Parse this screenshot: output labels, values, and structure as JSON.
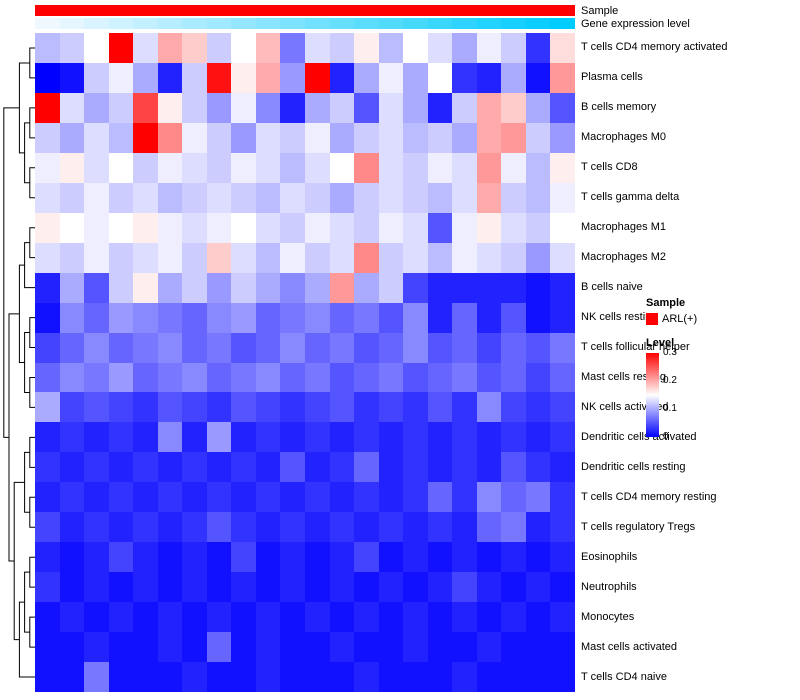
{
  "annotations": {
    "sample_label": "Sample",
    "expression_label": "Gene expression level",
    "sample_color": "#ff0000",
    "expression_gradient": [
      "#f0f8ff",
      "#00ccff"
    ]
  },
  "legend": {
    "sample_title": "Sample",
    "sample_items": [
      {
        "label": "ARL(+)",
        "color": "#ff0000"
      }
    ],
    "level_title": "Level",
    "level_ticks": [
      "0.3",
      "0.2",
      "0.1",
      "0"
    ]
  },
  "chart_data": {
    "type": "heatmap",
    "title": "",
    "n_cols": 22,
    "row_labels": [
      "T cells CD4 memory activated",
      "Plasma cells",
      "B cells memory",
      "Macrophages M0",
      "T cells CD8",
      "T cells gamma delta",
      "Macrophages M1",
      "Macrophages M2",
      "B cells naive",
      "NK cells resting",
      "T cells follicular helper",
      "Mast cells resting",
      "NK cells activated",
      "Dendritic cells activated",
      "Dendritic cells resting",
      "T cells CD4 memory resting",
      "T cells regulatory  Tregs",
      "Eosinophils",
      "Neutrophils",
      "Monocytes",
      "Mast cells activated",
      "T cells CD4 naive"
    ],
    "color_scale": {
      "min": 0,
      "mid": 0.15,
      "max": 0.3,
      "min_color": "#0000ff",
      "mid_color": "#ffffff",
      "max_color": "#ff0000"
    },
    "values": [
      [
        0.11,
        0.12,
        0.15,
        0.3,
        0.13,
        0.2,
        0.18,
        0.12,
        0.15,
        0.19,
        0.07,
        0.13,
        0.12,
        0.16,
        0.11,
        0.15,
        0.13,
        0.1,
        0.14,
        0.12,
        0.03,
        0.17
      ],
      [
        0.0,
        0.01,
        0.12,
        0.14,
        0.1,
        0.02,
        0.12,
        0.29,
        0.16,
        0.2,
        0.09,
        0.3,
        0.02,
        0.1,
        0.14,
        0.1,
        0.15,
        0.03,
        0.02,
        0.1,
        0.01,
        0.21
      ],
      [
        0.3,
        0.13,
        0.1,
        0.12,
        0.26,
        0.16,
        0.12,
        0.09,
        0.14,
        0.08,
        0.02,
        0.1,
        0.12,
        0.05,
        0.13,
        0.1,
        0.02,
        0.12,
        0.2,
        0.18,
        0.1,
        0.05
      ],
      [
        0.12,
        0.1,
        0.13,
        0.11,
        0.3,
        0.22,
        0.14,
        0.12,
        0.09,
        0.13,
        0.12,
        0.14,
        0.1,
        0.12,
        0.13,
        0.11,
        0.12,
        0.1,
        0.2,
        0.21,
        0.12,
        0.09
      ],
      [
        0.14,
        0.16,
        0.13,
        0.15,
        0.12,
        0.14,
        0.13,
        0.12,
        0.14,
        0.13,
        0.11,
        0.13,
        0.15,
        0.22,
        0.13,
        0.12,
        0.14,
        0.13,
        0.21,
        0.14,
        0.11,
        0.16
      ],
      [
        0.13,
        0.12,
        0.14,
        0.12,
        0.13,
        0.11,
        0.12,
        0.13,
        0.12,
        0.11,
        0.13,
        0.12,
        0.1,
        0.12,
        0.13,
        0.12,
        0.11,
        0.13,
        0.2,
        0.12,
        0.11,
        0.14
      ],
      [
        0.16,
        0.15,
        0.14,
        0.15,
        0.16,
        0.14,
        0.13,
        0.14,
        0.15,
        0.13,
        0.12,
        0.14,
        0.13,
        0.12,
        0.14,
        0.13,
        0.05,
        0.14,
        0.16,
        0.13,
        0.12,
        0.15
      ],
      [
        0.13,
        0.12,
        0.14,
        0.12,
        0.13,
        0.14,
        0.12,
        0.18,
        0.13,
        0.11,
        0.14,
        0.12,
        0.13,
        0.22,
        0.12,
        0.13,
        0.11,
        0.14,
        0.13,
        0.12,
        0.09,
        0.13
      ],
      [
        0.02,
        0.1,
        0.05,
        0.12,
        0.16,
        0.1,
        0.12,
        0.09,
        0.12,
        0.1,
        0.08,
        0.1,
        0.21,
        0.1,
        0.12,
        0.04,
        0.02,
        0.02,
        0.02,
        0.02,
        0.01,
        0.02
      ],
      [
        0.01,
        0.08,
        0.06,
        0.09,
        0.08,
        0.07,
        0.06,
        0.08,
        0.09,
        0.06,
        0.07,
        0.08,
        0.06,
        0.07,
        0.05,
        0.08,
        0.02,
        0.06,
        0.02,
        0.05,
        0.01,
        0.02
      ],
      [
        0.04,
        0.06,
        0.08,
        0.06,
        0.07,
        0.08,
        0.06,
        0.07,
        0.05,
        0.06,
        0.08,
        0.06,
        0.07,
        0.05,
        0.06,
        0.08,
        0.05,
        0.06,
        0.04,
        0.06,
        0.05,
        0.07
      ],
      [
        0.06,
        0.08,
        0.07,
        0.09,
        0.06,
        0.07,
        0.08,
        0.06,
        0.07,
        0.08,
        0.06,
        0.07,
        0.05,
        0.06,
        0.07,
        0.05,
        0.06,
        0.07,
        0.05,
        0.06,
        0.04,
        0.06
      ],
      [
        0.1,
        0.04,
        0.05,
        0.04,
        0.03,
        0.05,
        0.04,
        0.03,
        0.05,
        0.04,
        0.03,
        0.04,
        0.05,
        0.03,
        0.04,
        0.03,
        0.05,
        0.03,
        0.08,
        0.04,
        0.03,
        0.04
      ],
      [
        0.02,
        0.03,
        0.02,
        0.03,
        0.02,
        0.08,
        0.02,
        0.09,
        0.02,
        0.03,
        0.02,
        0.03,
        0.02,
        0.03,
        0.02,
        0.03,
        0.02,
        0.03,
        0.02,
        0.03,
        0.02,
        0.03
      ],
      [
        0.03,
        0.02,
        0.03,
        0.02,
        0.03,
        0.02,
        0.03,
        0.02,
        0.03,
        0.02,
        0.05,
        0.02,
        0.03,
        0.06,
        0.02,
        0.03,
        0.02,
        0.03,
        0.02,
        0.05,
        0.03,
        0.02
      ],
      [
        0.02,
        0.03,
        0.02,
        0.03,
        0.02,
        0.03,
        0.02,
        0.03,
        0.02,
        0.03,
        0.02,
        0.03,
        0.02,
        0.03,
        0.02,
        0.03,
        0.06,
        0.03,
        0.08,
        0.06,
        0.07,
        0.03
      ],
      [
        0.04,
        0.02,
        0.03,
        0.02,
        0.03,
        0.02,
        0.03,
        0.05,
        0.03,
        0.02,
        0.03,
        0.02,
        0.03,
        0.02,
        0.03,
        0.02,
        0.03,
        0.02,
        0.06,
        0.07,
        0.02,
        0.03
      ],
      [
        0.02,
        0.01,
        0.02,
        0.04,
        0.02,
        0.01,
        0.02,
        0.01,
        0.04,
        0.01,
        0.02,
        0.01,
        0.02,
        0.04,
        0.01,
        0.02,
        0.01,
        0.02,
        0.01,
        0.02,
        0.01,
        0.02
      ],
      [
        0.03,
        0.01,
        0.02,
        0.01,
        0.02,
        0.01,
        0.02,
        0.01,
        0.02,
        0.01,
        0.02,
        0.01,
        0.02,
        0.01,
        0.02,
        0.01,
        0.02,
        0.04,
        0.02,
        0.01,
        0.02,
        0.01
      ],
      [
        0.01,
        0.02,
        0.01,
        0.02,
        0.01,
        0.02,
        0.01,
        0.02,
        0.01,
        0.02,
        0.01,
        0.02,
        0.01,
        0.02,
        0.01,
        0.02,
        0.01,
        0.02,
        0.01,
        0.02,
        0.01,
        0.02
      ],
      [
        0.01,
        0.01,
        0.02,
        0.01,
        0.01,
        0.02,
        0.01,
        0.06,
        0.01,
        0.02,
        0.01,
        0.01,
        0.02,
        0.01,
        0.01,
        0.02,
        0.01,
        0.01,
        0.02,
        0.01,
        0.01,
        0.01
      ],
      [
        0.01,
        0.01,
        0.07,
        0.01,
        0.01,
        0.01,
        0.02,
        0.01,
        0.01,
        0.02,
        0.01,
        0.01,
        0.01,
        0.02,
        0.01,
        0.01,
        0.01,
        0.02,
        0.01,
        0.01,
        0.01,
        0.01
      ]
    ],
    "dendrogram": [
      [
        [
          0,
          1
        ],
        [
          [
            2,
            3
          ],
          [
            4,
            5
          ]
        ]
      ],
      [
        [
          [
            [
              6,
              7
            ],
            8
          ],
          [
            [
              9,
              10
            ],
            [
              11,
              12
            ]
          ]
        ],
        [
          [
            [
              13,
              14
            ],
            [
              15,
              16
            ]
          ],
          [
            [
              [
                17,
                18
              ],
              [
                19,
                20
              ]
            ],
            21
          ]
        ]
      ]
    ]
  }
}
